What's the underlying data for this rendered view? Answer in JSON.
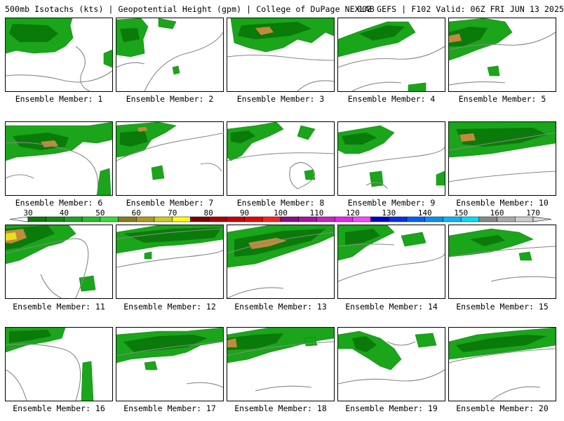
{
  "header": {
    "title_left": "500mb Isotachs (kts) | Geopotential Height (gpm) | College of DuPage NEXLAB",
    "title_right": "00Z GEFS | F102 Valid: 06Z FRI JUN 13 2025"
  },
  "label_prefix": "Ensemble Member: ",
  "members": [
    {
      "n": "1",
      "label": "Ensemble Member: 1"
    },
    {
      "n": "2",
      "label": "Ensemble Member: 2"
    },
    {
      "n": "3",
      "label": "Ensemble Member: 3"
    },
    {
      "n": "4",
      "label": "Ensemble Member: 4"
    },
    {
      "n": "5",
      "label": "Ensemble Member: 5"
    },
    {
      "n": "6",
      "label": "Ensemble Member: 6"
    },
    {
      "n": "7",
      "label": "Ensemble Member: 7"
    },
    {
      "n": "8",
      "label": "Ensemble Member: 8"
    },
    {
      "n": "9",
      "label": "Ensemble Member: 9"
    },
    {
      "n": "10",
      "label": "Ensemble Member: 10"
    },
    {
      "n": "11",
      "label": "Ensemble Member: 11"
    },
    {
      "n": "12",
      "label": "Ensemble Member: 12"
    },
    {
      "n": "13",
      "label": "Ensemble Member: 13"
    },
    {
      "n": "14",
      "label": "Ensemble Member: 14"
    },
    {
      "n": "15",
      "label": "Ensemble Member: 15"
    },
    {
      "n": "16",
      "label": "Ensemble Member: 16"
    },
    {
      "n": "17",
      "label": "Ensemble Member: 17"
    },
    {
      "n": "18",
      "label": "Ensemble Member: 18"
    },
    {
      "n": "19",
      "label": "Ensemble Member: 19"
    },
    {
      "n": "20",
      "label": "Ensemble Member: 20"
    }
  ],
  "colorbar": {
    "labels": [
      "30",
      "40",
      "50",
      "60",
      "70",
      "80",
      "90",
      "100",
      "110",
      "120",
      "130",
      "140",
      "150",
      "160",
      "170"
    ],
    "colors": [
      "#0a7a0a",
      "#118c11",
      "#1aa51a",
      "#22c022",
      "#33dd33",
      "#8b7a1a",
      "#b09a1a",
      "#cccc22",
      "#ffff00",
      "#7a0000",
      "#aa0000",
      "#cc0000",
      "#ee0000",
      "#ff2020",
      "#8a0a8a",
      "#aa10aa",
      "#cc20cc",
      "#ee22ee",
      "#ff44ff",
      "#0000cc",
      "#0030ee",
      "#0060ff",
      "#0090ff",
      "#00b8ff",
      "#00ddff",
      "#888888",
      "#aaaaaa",
      "#cccccc"
    ]
  },
  "palette": {
    "jet_light": "#1aa51a",
    "jet_mid": "#0a7a0a",
    "jet_core": "#c28a3c",
    "jet_peak": "#e8e020",
    "contour": "#888888"
  }
}
